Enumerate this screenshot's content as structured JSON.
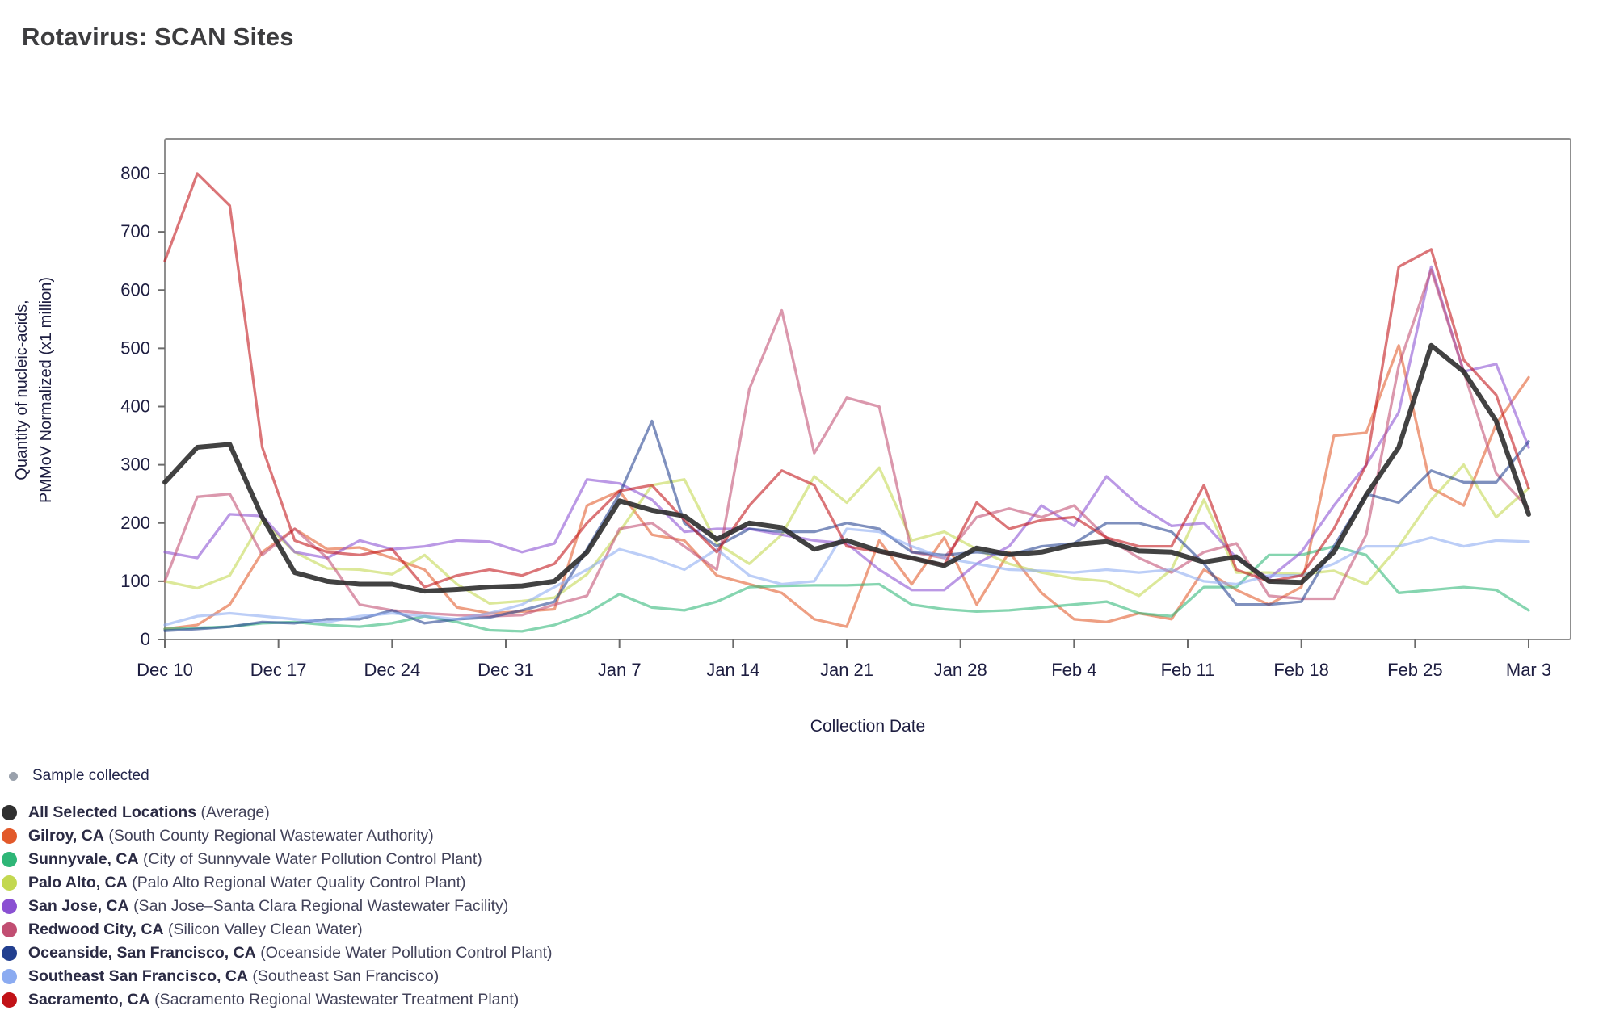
{
  "title": "Rotavirus: SCAN Sites",
  "axes": {
    "y_label_line1": "Quantity of nucleic-acids,",
    "y_label_line2": "PMMoV Normalized (x1 million)",
    "x_label": "Collection Date",
    "y_ticks": [
      0,
      100,
      200,
      300,
      400,
      500,
      600,
      700,
      800
    ],
    "x_ticks": [
      {
        "label": "Dec 10",
        "day": 0
      },
      {
        "label": "Dec 17",
        "day": 7
      },
      {
        "label": "Dec 24",
        "day": 14
      },
      {
        "label": "Dec 31",
        "day": 21
      },
      {
        "label": "Jan 7",
        "day": 28
      },
      {
        "label": "Jan 14",
        "day": 35
      },
      {
        "label": "Jan 21",
        "day": 42
      },
      {
        "label": "Jan 28",
        "day": 49
      },
      {
        "label": "Feb 4",
        "day": 56
      },
      {
        "label": "Feb 11",
        "day": 63
      },
      {
        "label": "Feb 18",
        "day": 70
      },
      {
        "label": "Feb 25",
        "day": 77
      },
      {
        "label": "Mar 3",
        "day": 84
      }
    ]
  },
  "sample_legend": {
    "label": "Sample collected",
    "dot_color": "#9aa1ac"
  },
  "legend": [
    {
      "name": "All Selected Locations",
      "detail": "(Average)",
      "color": "#303030"
    },
    {
      "name": "Gilroy, CA",
      "detail": "(South County Regional Wastewater Authority)",
      "color": "#e2592a"
    },
    {
      "name": "Sunnyvale, CA",
      "detail": "(City of Sunnyvale Water Pollution Control Plant)",
      "color": "#2eb677"
    },
    {
      "name": "Palo Alto, CA",
      "detail": "(Palo Alto Regional Water Quality Control Plant)",
      "color": "#c3d850"
    },
    {
      "name": "San Jose, CA",
      "detail": "(San Jose–Santa Clara Regional Wastewater Facility)",
      "color": "#8a50d2"
    },
    {
      "name": "Redwood City, CA",
      "detail": "(Silicon Valley Clean Water)",
      "color": "#c14e72"
    },
    {
      "name": "Oceanside, San Francisco, CA",
      "detail": "(Oceanside Water Pollution Control Plant)",
      "color": "#223f8f"
    },
    {
      "name": "Southeast San Francisco, CA",
      "detail": "(Southeast San Francisco)",
      "color": "#8babf1"
    },
    {
      "name": "Sacramento, CA",
      "detail": "(Sacramento Regional Wastewater Treatment Plant)",
      "color": "#c11217"
    }
  ],
  "chart_data": {
    "type": "line",
    "title": "Rotavirus: SCAN Sites",
    "xlabel": "Collection Date",
    "ylabel": "Quantity of nucleic-acids, PMMoV Normalized (x1 million)",
    "x_range_days": [
      0,
      84
    ],
    "x_start_label": "Dec 10",
    "x_end_label": "Mar 3",
    "sample_interval_days": 2,
    "ylim": [
      0,
      860
    ],
    "grid": false,
    "legend_position": "bottom-left",
    "series": [
      {
        "name": "Gilroy, CA",
        "key": "gilroy",
        "line_color": "#e2592a",
        "role": "site",
        "values": [
          18,
          25,
          60,
          150,
          190,
          155,
          158,
          140,
          120,
          55,
          45,
          48,
          52,
          230,
          255,
          180,
          170,
          110,
          95,
          80,
          35,
          22,
          170,
          95,
          175,
          60,
          150,
          80,
          35,
          30,
          45,
          35,
          120,
          85,
          60,
          90,
          350,
          355,
          505,
          260,
          230,
          370,
          450
        ]
      },
      {
        "name": "Sunnyvale, CA",
        "key": "sunnyvale",
        "line_color": "#2eb677",
        "role": "site",
        "values": [
          18,
          20,
          22,
          28,
          30,
          25,
          22,
          28,
          40,
          30,
          16,
          14,
          25,
          45,
          78,
          55,
          50,
          65,
          90,
          92,
          93,
          93,
          95,
          60,
          52,
          48,
          50,
          55,
          60,
          65,
          45,
          40,
          90,
          90,
          145,
          145,
          160,
          145,
          80,
          85,
          90,
          85,
          50
        ]
      },
      {
        "name": "Palo Alto, CA",
        "key": "paloalto",
        "line_color": "#c3d850",
        "role": "site",
        "values": [
          100,
          88,
          110,
          205,
          150,
          122,
          120,
          112,
          145,
          95,
          62,
          66,
          72,
          112,
          185,
          265,
          275,
          165,
          130,
          180,
          280,
          235,
          295,
          170,
          185,
          155,
          130,
          115,
          105,
          100,
          75,
          120,
          240,
          115,
          115,
          112,
          118,
          95,
          160,
          240,
          300,
          210,
          260
        ]
      },
      {
        "name": "San Jose, CA",
        "key": "sanjose",
        "line_color": "#8a50d2",
        "role": "site",
        "values": [
          150,
          140,
          215,
          212,
          150,
          140,
          170,
          155,
          160,
          170,
          168,
          150,
          165,
          275,
          268,
          240,
          185,
          190,
          190,
          180,
          170,
          165,
          120,
          85,
          85,
          130,
          160,
          230,
          195,
          280,
          230,
          195,
          200,
          140,
          105,
          150,
          230,
          300,
          390,
          640,
          460,
          473,
          330
        ]
      },
      {
        "name": "Redwood City, CA",
        "key": "redwood",
        "line_color": "#c14e72",
        "role": "site",
        "values": [
          100,
          245,
          250,
          145,
          190,
          140,
          60,
          50,
          45,
          42,
          40,
          42,
          60,
          75,
          190,
          200,
          160,
          120,
          430,
          565,
          320,
          415,
          400,
          150,
          140,
          210,
          225,
          210,
          230,
          175,
          140,
          115,
          150,
          165,
          75,
          70,
          70,
          180,
          470,
          635,
          460,
          285,
          225
        ]
      },
      {
        "name": "Oceanside, San Francisco, CA",
        "key": "oceanside",
        "line_color": "#223f8f",
        "role": "site",
        "values": [
          15,
          18,
          22,
          30,
          28,
          35,
          35,
          50,
          28,
          35,
          38,
          50,
          65,
          155,
          250,
          375,
          200,
          160,
          190,
          185,
          185,
          200,
          190,
          150,
          145,
          150,
          145,
          160,
          165,
          200,
          200,
          185,
          130,
          60,
          60,
          65,
          160,
          250,
          235,
          290,
          270,
          270,
          340
        ]
      },
      {
        "name": "Southeast San Francisco, CA",
        "key": "southeastsf",
        "line_color": "#8babf1",
        "role": "site",
        "values": [
          25,
          40,
          45,
          40,
          35,
          30,
          40,
          45,
          40,
          35,
          45,
          60,
          90,
          120,
          155,
          140,
          120,
          155,
          110,
          95,
          100,
          190,
          185,
          160,
          140,
          130,
          120,
          118,
          115,
          120,
          115,
          120,
          100,
          95,
          110,
          110,
          130,
          160,
          160,
          175,
          160,
          170,
          168
        ]
      },
      {
        "name": "Sacramento, CA",
        "key": "sacramento",
        "line_color": "#c11217",
        "role": "site",
        "values": [
          650,
          800,
          745,
          330,
          170,
          150,
          145,
          155,
          90,
          110,
          120,
          110,
          130,
          200,
          255,
          265,
          205,
          150,
          230,
          290,
          265,
          160,
          150,
          140,
          128,
          235,
          190,
          205,
          210,
          175,
          160,
          160,
          265,
          120,
          100,
          110,
          190,
          300,
          640,
          670,
          480,
          420,
          260
        ]
      },
      {
        "name": "All Selected Locations (Average)",
        "key": "average",
        "line_color": "#2d2d2d",
        "role": "average",
        "values": [
          270,
          330,
          335,
          210,
          115,
          100,
          95,
          95,
          83,
          86,
          90,
          92,
          100,
          150,
          238,
          222,
          212,
          172,
          200,
          192,
          155,
          170,
          152,
          140,
          127,
          157,
          146,
          150,
          163,
          168,
          152,
          150,
          133,
          142,
          100,
          98,
          150,
          248,
          330,
          505,
          460,
          375,
          215
        ]
      }
    ]
  },
  "style": {
    "frame_color": "#8f8f8f",
    "tick_color": "#6b6b6b",
    "tick_label_color": "#1d1d40",
    "site_line_width": 3.3,
    "site_line_opacity": 0.58,
    "average_line_width": 6,
    "average_line_opacity": 0.9
  }
}
